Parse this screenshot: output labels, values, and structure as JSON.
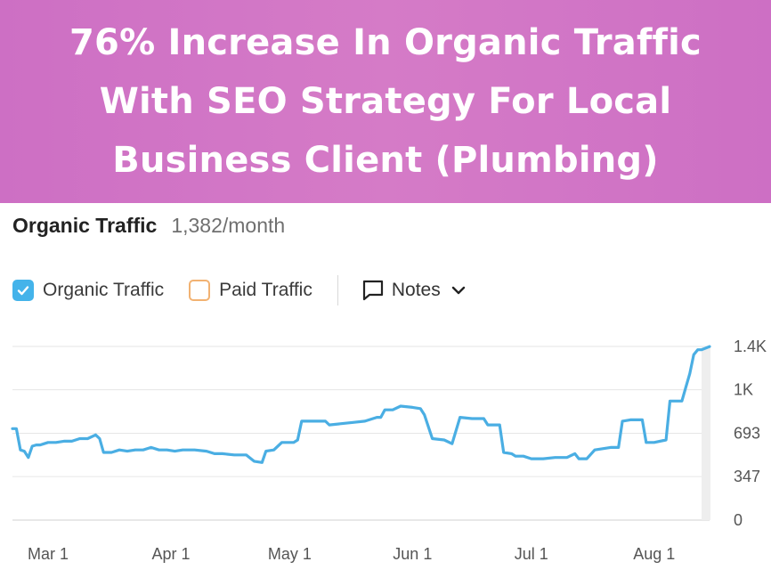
{
  "banner": {
    "line1": "76% Increase In Organic Traffic",
    "line2": "With SEO Strategy For Local",
    "line3": "Business Client (Plumbing)",
    "background": "#d27ac8"
  },
  "header": {
    "title": "Organic Traffic",
    "metric": "1,382/month"
  },
  "legend": {
    "organic_label": "Organic Traffic",
    "organic_checked": true,
    "organic_color": "#44b3ea",
    "paid_label": "Paid Traffic",
    "paid_checked": false,
    "paid_color": "#f2b272",
    "notes_label": "Notes"
  },
  "chart_data": {
    "type": "line",
    "title": "Organic Traffic",
    "xlabel": "",
    "ylabel": "",
    "x_tick_labels": [
      "Mar 1",
      "Apr 1",
      "May 1",
      "Jun 1",
      "Jul 1",
      "Aug 1"
    ],
    "y_tick_labels": [
      "0",
      "347",
      "693",
      "1K",
      "1.4K"
    ],
    "y_tick_values": [
      0,
      347,
      693,
      1040,
      1386
    ],
    "ylim": [
      0,
      1386
    ],
    "grid": true,
    "series": [
      {
        "color": "#4aaee3",
        "points": [
          [
            "2024-02-21",
            730
          ],
          [
            "2024-02-22",
            730
          ],
          [
            "2024-02-23",
            560
          ],
          [
            "2024-02-24",
            550
          ],
          [
            "2024-02-25",
            500
          ],
          [
            "2024-02-26",
            590
          ],
          [
            "2024-02-27",
            600
          ],
          [
            "2024-02-28",
            600
          ],
          [
            "2024-02-29",
            610
          ],
          [
            "2024-03-01",
            620
          ],
          [
            "2024-03-03",
            620
          ],
          [
            "2024-03-05",
            630
          ],
          [
            "2024-03-07",
            630
          ],
          [
            "2024-03-09",
            650
          ],
          [
            "2024-03-11",
            650
          ],
          [
            "2024-03-13",
            680
          ],
          [
            "2024-03-14",
            650
          ],
          [
            "2024-03-15",
            540
          ],
          [
            "2024-03-17",
            540
          ],
          [
            "2024-03-19",
            560
          ],
          [
            "2024-03-21",
            550
          ],
          [
            "2024-03-23",
            560
          ],
          [
            "2024-03-25",
            560
          ],
          [
            "2024-03-27",
            580
          ],
          [
            "2024-03-29",
            560
          ],
          [
            "2024-03-31",
            560
          ],
          [
            "2024-04-02",
            550
          ],
          [
            "2024-04-04",
            560
          ],
          [
            "2024-04-07",
            560
          ],
          [
            "2024-04-10",
            550
          ],
          [
            "2024-04-12",
            530
          ],
          [
            "2024-04-14",
            530
          ],
          [
            "2024-04-17",
            520
          ],
          [
            "2024-04-20",
            520
          ],
          [
            "2024-04-22",
            470
          ],
          [
            "2024-04-24",
            460
          ],
          [
            "2024-04-25",
            550
          ],
          [
            "2024-04-27",
            560
          ],
          [
            "2024-04-29",
            620
          ],
          [
            "2024-05-02",
            620
          ],
          [
            "2024-05-03",
            640
          ],
          [
            "2024-05-04",
            790
          ],
          [
            "2024-05-07",
            790
          ],
          [
            "2024-05-10",
            790
          ],
          [
            "2024-05-11",
            760
          ],
          [
            "2024-05-14",
            770
          ],
          [
            "2024-05-17",
            780
          ],
          [
            "2024-05-20",
            790
          ],
          [
            "2024-05-23",
            820
          ],
          [
            "2024-05-24",
            820
          ],
          [
            "2024-05-25",
            880
          ],
          [
            "2024-05-27",
            880
          ],
          [
            "2024-05-29",
            910
          ],
          [
            "2024-06-01",
            900
          ],
          [
            "2024-06-03",
            890
          ],
          [
            "2024-06-04",
            840
          ],
          [
            "2024-06-06",
            650
          ],
          [
            "2024-06-09",
            640
          ],
          [
            "2024-06-11",
            610
          ],
          [
            "2024-06-13",
            820
          ],
          [
            "2024-06-16",
            810
          ],
          [
            "2024-06-19",
            810
          ],
          [
            "2024-06-20",
            760
          ],
          [
            "2024-06-23",
            760
          ],
          [
            "2024-06-24",
            540
          ],
          [
            "2024-06-26",
            530
          ],
          [
            "2024-06-27",
            510
          ],
          [
            "2024-06-29",
            510
          ],
          [
            "2024-07-01",
            490
          ],
          [
            "2024-07-04",
            490
          ],
          [
            "2024-07-07",
            500
          ],
          [
            "2024-07-10",
            500
          ],
          [
            "2024-07-12",
            530
          ],
          [
            "2024-07-13",
            490
          ],
          [
            "2024-07-15",
            490
          ],
          [
            "2024-07-17",
            560
          ],
          [
            "2024-07-19",
            570
          ],
          [
            "2024-07-21",
            580
          ],
          [
            "2024-07-23",
            580
          ],
          [
            "2024-07-24",
            790
          ],
          [
            "2024-07-26",
            800
          ],
          [
            "2024-07-29",
            800
          ],
          [
            "2024-07-30",
            620
          ],
          [
            "2024-08-01",
            620
          ],
          [
            "2024-08-04",
            640
          ],
          [
            "2024-08-05",
            950
          ],
          [
            "2024-08-08",
            950
          ],
          [
            "2024-08-09",
            1060
          ],
          [
            "2024-08-10",
            1170
          ],
          [
            "2024-08-11",
            1320
          ],
          [
            "2024-08-12",
            1360
          ],
          [
            "2024-08-13",
            1360
          ],
          [
            "2024-08-15",
            1385
          ]
        ]
      }
    ]
  }
}
